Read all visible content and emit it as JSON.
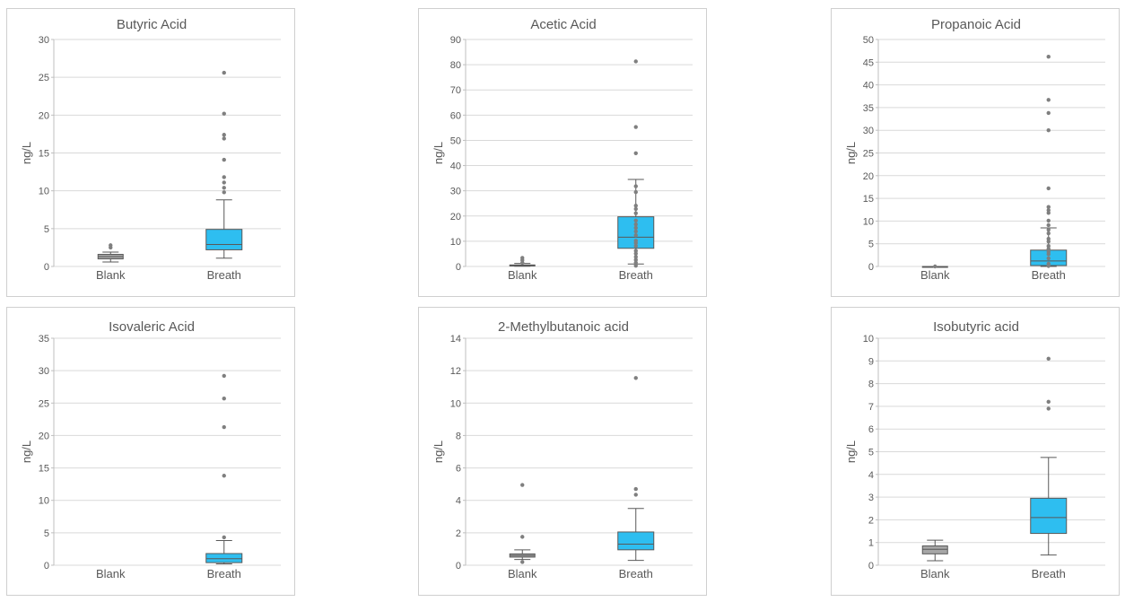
{
  "chart_data": [
    {
      "type": "box",
      "title": "Butyric Acid",
      "ylabel": "ng/L",
      "ylim": [
        0,
        30
      ],
      "yticks": [
        "0",
        "5",
        "10",
        "15",
        "20",
        "25",
        "30"
      ],
      "categories": [
        "Blank",
        "Breath"
      ],
      "boxes": [
        {
          "category": "Blank",
          "min": 0.6,
          "q1": 1.0,
          "median": 1.3,
          "q3": 1.6,
          "max": 1.9,
          "outliers": [
            2.5,
            2.8
          ],
          "color": "#a6a6a6"
        },
        {
          "category": "Breath",
          "min": 1.1,
          "q1": 2.2,
          "median": 2.9,
          "q3": 4.9,
          "max": 8.8,
          "outliers": [
            9.8,
            10.4,
            11.1,
            11.8,
            14.1,
            16.9,
            17.4,
            20.2,
            25.6
          ],
          "color": "#2ebef0"
        }
      ]
    },
    {
      "type": "box",
      "title": "Acetic Acid",
      "ylabel": "ng/L",
      "ylim": [
        0,
        90
      ],
      "yticks": [
        "0",
        "10",
        "20",
        "30",
        "40",
        "50",
        "60",
        "70",
        "80",
        "90"
      ],
      "categories": [
        "Blank",
        "Breath"
      ],
      "boxes": [
        {
          "category": "Blank",
          "min": 0.1,
          "q1": 0.2,
          "median": 0.4,
          "q3": 0.6,
          "max": 1.2,
          "outliers": [
            1.5,
            2.5,
            3.4
          ],
          "color": "#a6a6a6"
        },
        {
          "category": "Breath",
          "min": 1.0,
          "q1": 7.2,
          "median": 11.6,
          "q3": 19.7,
          "max": 34.5,
          "outliers": [
            0.3,
            1.5,
            2.6,
            3.8,
            5.1,
            6.2,
            8.1,
            9.3,
            10.2,
            12.4,
            13.9,
            15.3,
            16.7,
            18.2,
            21.1,
            22.8,
            24.1,
            29.5,
            31.8,
            44.9,
            55.3,
            81.3
          ],
          "color": "#2ebef0"
        }
      ]
    },
    {
      "type": "box",
      "title": "Propanoic Acid",
      "ylabel": "ng/L",
      "ylim": [
        0,
        50
      ],
      "yticks": [
        "0",
        "5",
        "10",
        "15",
        "20",
        "25",
        "30",
        "35",
        "40",
        "45",
        "50"
      ],
      "categories": [
        "Blank",
        "Breath"
      ],
      "boxes": [
        {
          "category": "Blank",
          "min": 0.0,
          "q1": 0.0,
          "median": 0.0,
          "q3": 0.0,
          "max": 0.0,
          "outliers": [
            0.0
          ],
          "color": "#a6a6a6"
        },
        {
          "category": "Breath",
          "min": 0.0,
          "q1": 0.2,
          "median": 1.2,
          "q3": 3.6,
          "max": 8.5,
          "outliers": [
            0.1,
            0.6,
            1.8,
            2.7,
            3.2,
            3.9,
            4.5,
            5.5,
            6.1,
            7.3,
            8.1,
            9.1,
            10.1,
            11.8,
            12.4,
            13.1,
            17.2,
            30.0,
            33.8,
            36.7,
            46.2
          ],
          "color": "#2ebef0"
        }
      ]
    },
    {
      "type": "box",
      "title": "Isovaleric Acid",
      "ylabel": "ng/L",
      "ylim": [
        0,
        35
      ],
      "yticks": [
        "0",
        "5",
        "10",
        "15",
        "20",
        "25",
        "30",
        "35"
      ],
      "categories": [
        "Blank",
        "Breath"
      ],
      "boxes": [
        {
          "category": "Blank",
          "min": null,
          "q1": null,
          "median": null,
          "q3": null,
          "max": null,
          "outliers": [],
          "color": "#a6a6a6"
        },
        {
          "category": "Breath",
          "min": 0.2,
          "q1": 0.4,
          "median": 1.0,
          "q3": 1.8,
          "max": 3.8,
          "outliers": [
            4.3,
            13.8,
            21.3,
            25.7,
            29.2
          ],
          "color": "#2ebef0"
        }
      ]
    },
    {
      "type": "box",
      "title": "2-Methylbutanoic acid",
      "ylabel": "ng/L",
      "ylim": [
        0,
        14
      ],
      "yticks": [
        "0",
        "2",
        "4",
        "6",
        "8",
        "10",
        "12",
        "14"
      ],
      "categories": [
        "Blank",
        "Breath"
      ],
      "boxes": [
        {
          "category": "Blank",
          "min": 0.35,
          "q1": 0.5,
          "median": 0.6,
          "q3": 0.7,
          "max": 0.95,
          "outliers": [
            0.2,
            1.75,
            4.95
          ],
          "color": "#a6a6a6"
        },
        {
          "category": "Breath",
          "min": 0.3,
          "q1": 0.95,
          "median": 1.3,
          "q3": 2.05,
          "max": 3.5,
          "outliers": [
            4.35,
            4.7,
            11.55
          ],
          "color": "#2ebef0"
        }
      ]
    },
    {
      "type": "box",
      "title": "Isobutyric acid",
      "ylabel": "ng/L",
      "ylim": [
        0,
        10
      ],
      "yticks": [
        "0",
        "1",
        "2",
        "3",
        "4",
        "5",
        "6",
        "7",
        "8",
        "9",
        "10"
      ],
      "categories": [
        "Blank",
        "Breath"
      ],
      "boxes": [
        {
          "category": "Blank",
          "min": 0.2,
          "q1": 0.5,
          "median": 0.7,
          "q3": 0.85,
          "max": 1.1,
          "outliers": [],
          "color": "#a6a6a6"
        },
        {
          "category": "Breath",
          "min": 0.45,
          "q1": 1.4,
          "median": 2.1,
          "q3": 2.95,
          "max": 4.75,
          "outliers": [
            6.9,
            7.2,
            9.1
          ],
          "color": "#2ebef0"
        }
      ]
    }
  ]
}
